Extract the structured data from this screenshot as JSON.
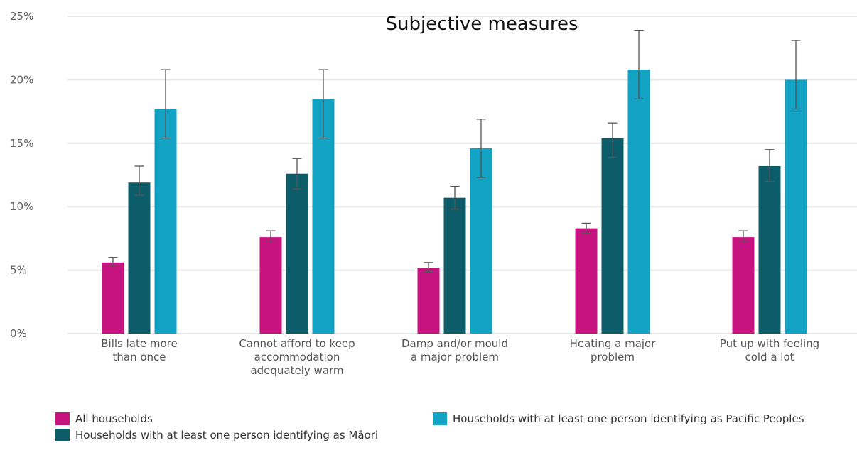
{
  "chart_data": {
    "type": "bar",
    "title": "Subjective measures",
    "xlabel": "",
    "ylabel": "",
    "ylim": [
      0,
      25
    ],
    "y_ticks": [
      "0%",
      "5%",
      "10%",
      "15%",
      "20%",
      "25%"
    ],
    "y_tick_values": [
      0,
      5,
      10,
      15,
      20,
      25
    ],
    "grid": true,
    "legend_position": "bottom",
    "categories": [
      [
        "Bills late more",
        "than once"
      ],
      [
        "Cannot afford to keep",
        "accommodation",
        "adequately warm"
      ],
      [
        "Damp and/or mould",
        "a major problem"
      ],
      [
        "Heating a major",
        "problem"
      ],
      [
        "Put up with feeling",
        "cold a lot"
      ]
    ],
    "series": [
      {
        "name": "All households",
        "color": "#c7137f",
        "values": [
          5.6,
          7.6,
          5.2,
          8.3,
          7.6
        ],
        "error_low": [
          5.3,
          7.2,
          4.9,
          7.9,
          7.2
        ],
        "error_high": [
          6.0,
          8.1,
          5.6,
          8.7,
          8.1
        ]
      },
      {
        "name": "Households with at least one person identifying as Māori",
        "color": "#0d5c69",
        "values": [
          11.9,
          12.6,
          10.7,
          15.4,
          13.2
        ],
        "error_low": [
          10.9,
          11.4,
          9.8,
          13.9,
          12.0
        ],
        "error_high": [
          13.2,
          13.8,
          11.6,
          16.6,
          14.5
        ]
      },
      {
        "name": "Households with at least one person identifying as Pacific Peoples",
        "color": "#12a3c4",
        "values": [
          17.7,
          18.5,
          14.6,
          20.8,
          20.0
        ],
        "error_low": [
          15.4,
          15.4,
          12.3,
          18.5,
          17.7
        ],
        "error_high": [
          20.8,
          20.8,
          16.9,
          23.9,
          23.1
        ]
      }
    ]
  }
}
